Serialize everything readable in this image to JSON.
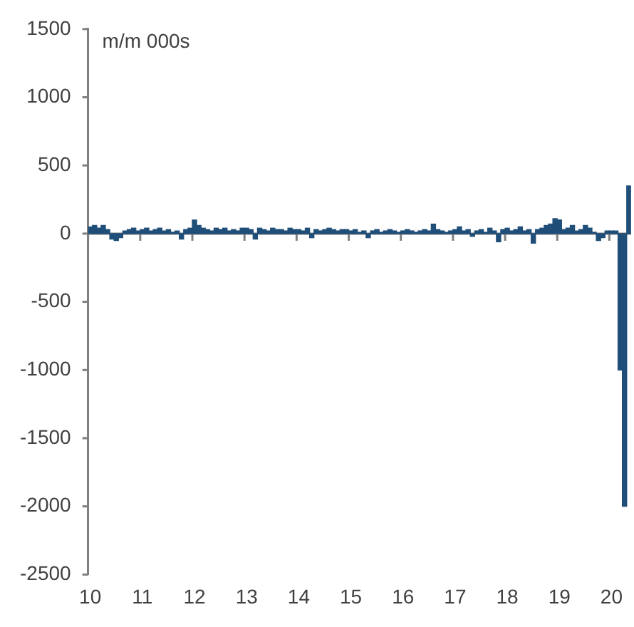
{
  "chart_data": {
    "type": "bar",
    "ylabel": "m/m 000s",
    "categories": [
      "10",
      null,
      null,
      null,
      null,
      null,
      null,
      null,
      null,
      null,
      null,
      null,
      "11",
      null,
      null,
      null,
      null,
      null,
      null,
      null,
      null,
      null,
      null,
      null,
      "12",
      null,
      null,
      null,
      null,
      null,
      null,
      null,
      null,
      null,
      null,
      null,
      "13",
      null,
      null,
      null,
      null,
      null,
      null,
      null,
      null,
      null,
      null,
      null,
      "14",
      null,
      null,
      null,
      null,
      null,
      null,
      null,
      null,
      null,
      null,
      null,
      "15",
      null,
      null,
      null,
      null,
      null,
      null,
      null,
      null,
      null,
      null,
      null,
      "16",
      null,
      null,
      null,
      null,
      null,
      null,
      null,
      null,
      null,
      null,
      null,
      "17",
      null,
      null,
      null,
      null,
      null,
      null,
      null,
      null,
      null,
      null,
      null,
      "18",
      null,
      null,
      null,
      null,
      null,
      null,
      null,
      null,
      null,
      null,
      null,
      "19",
      null,
      null,
      null,
      null,
      null,
      null,
      null,
      null,
      null,
      null,
      null,
      "20",
      null,
      null,
      null,
      null
    ],
    "values": [
      50,
      60,
      40,
      60,
      30,
      -40,
      -50,
      -30,
      20,
      30,
      40,
      20,
      30,
      40,
      20,
      30,
      40,
      20,
      30,
      10,
      20,
      -40,
      30,
      40,
      100,
      60,
      40,
      30,
      20,
      40,
      30,
      40,
      20,
      30,
      20,
      40,
      40,
      30,
      -40,
      40,
      30,
      20,
      40,
      30,
      30,
      20,
      40,
      30,
      30,
      20,
      40,
      -30,
      30,
      20,
      30,
      40,
      30,
      20,
      30,
      30,
      20,
      30,
      10,
      20,
      -30,
      20,
      30,
      10,
      20,
      30,
      20,
      10,
      20,
      30,
      20,
      10,
      20,
      30,
      20,
      70,
      30,
      20,
      10,
      20,
      30,
      50,
      20,
      30,
      -20,
      20,
      30,
      10,
      40,
      20,
      -60,
      30,
      40,
      20,
      30,
      50,
      20,
      30,
      -70,
      30,
      40,
      60,
      70,
      110,
      100,
      30,
      40,
      60,
      20,
      30,
      60,
      40,
      10,
      -50,
      -30,
      20,
      20,
      20,
      -1000,
      -2000,
      350
    ],
    "color": "#1f4e79",
    "ylim": [
      -2500,
      1500
    ],
    "yticks": [
      -2500,
      -2000,
      -1500,
      -1000,
      -500,
      0,
      500,
      1000,
      1500
    ],
    "ref_lines": [
      {
        "axis": "y",
        "value": 0,
        "color": "#7f7f7f"
      }
    ],
    "grid": false,
    "legend": false
  }
}
